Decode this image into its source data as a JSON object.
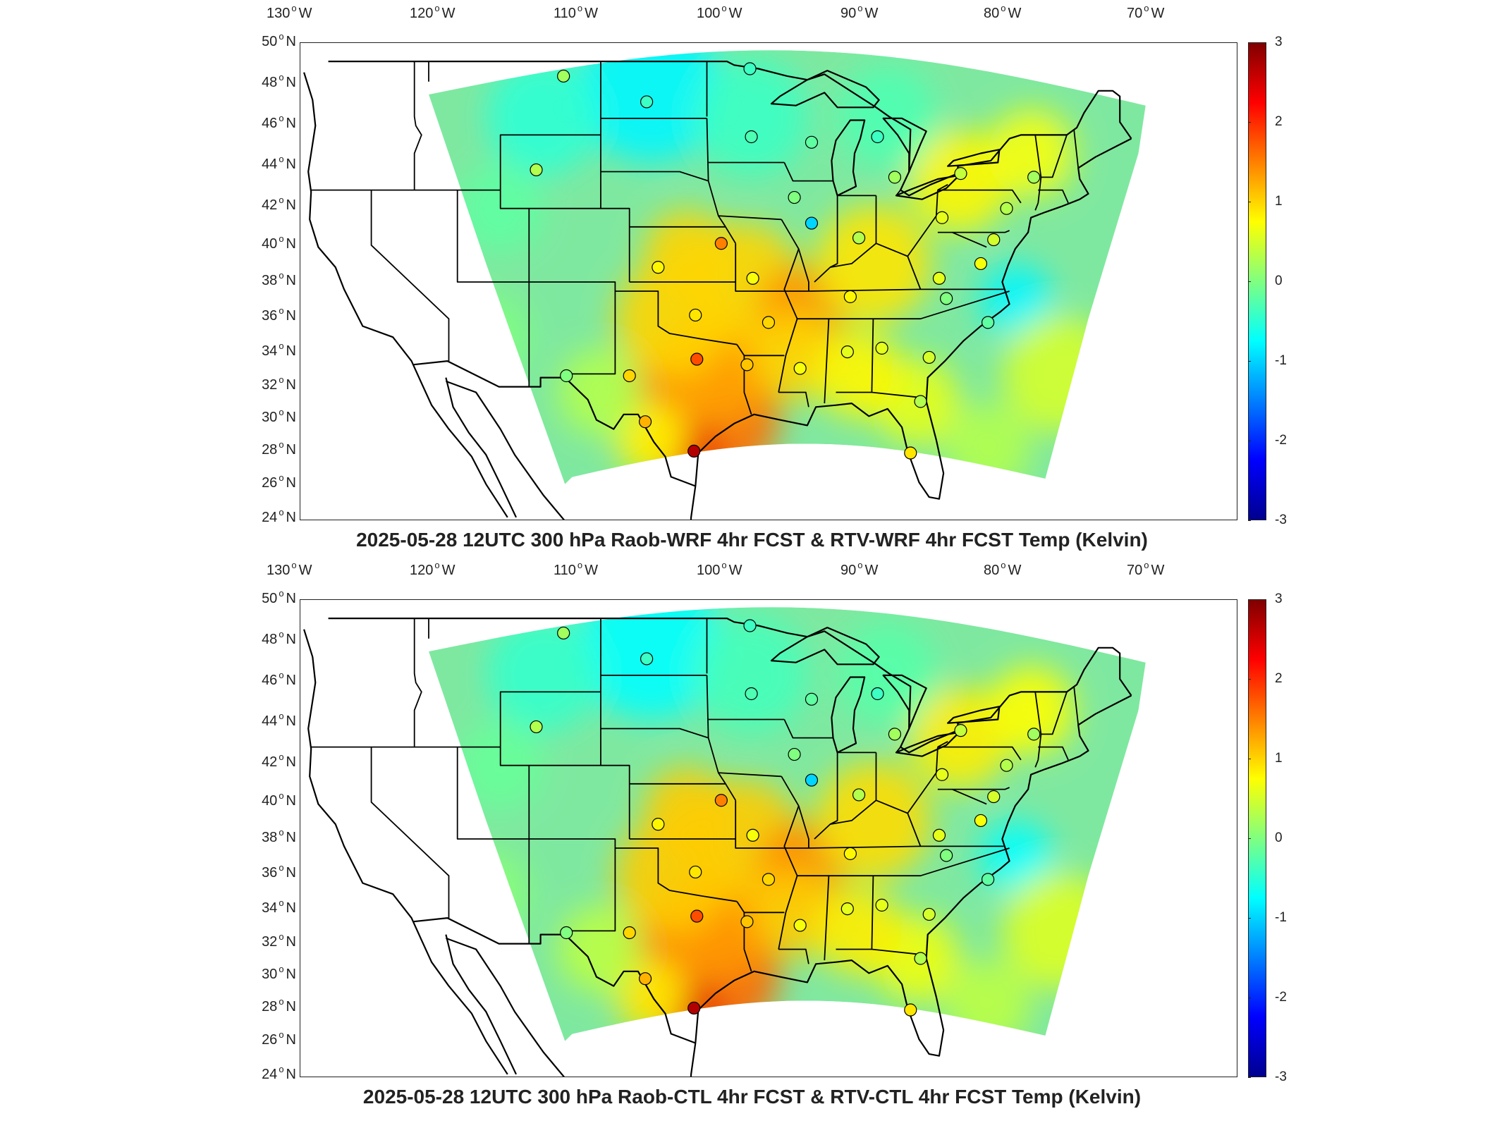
{
  "panels": [
    {
      "title": "2025-05-28 12UTC 300 hPa Raob-WRF 4hr FCST & RTV-WRF 4hr FCST Temp (Kelvin)"
    },
    {
      "title": "2025-05-28 12UTC 300 hPa Raob-CTL 4hr FCST & RTV-CTL 4hr FCST Temp (Kelvin)"
    }
  ],
  "lon_labels": [
    {
      "num": "130",
      "hemi": "W"
    },
    {
      "num": "120",
      "hemi": "W"
    },
    {
      "num": "110",
      "hemi": "W"
    },
    {
      "num": "100",
      "hemi": "W"
    },
    {
      "num": "90",
      "hemi": "W"
    },
    {
      "num": "80",
      "hemi": "W"
    },
    {
      "num": "70",
      "hemi": "W"
    }
  ],
  "lat_labels": [
    {
      "num": "50",
      "hemi": "N"
    },
    {
      "num": "48",
      "hemi": "N"
    },
    {
      "num": "46",
      "hemi": "N"
    },
    {
      "num": "44",
      "hemi": "N"
    },
    {
      "num": "42",
      "hemi": "N"
    },
    {
      "num": "40",
      "hemi": "N"
    },
    {
      "num": "38",
      "hemi": "N"
    },
    {
      "num": "36",
      "hemi": "N"
    },
    {
      "num": "34",
      "hemi": "N"
    },
    {
      "num": "32",
      "hemi": "N"
    },
    {
      "num": "30",
      "hemi": "N"
    },
    {
      "num": "28",
      "hemi": "N"
    },
    {
      "num": "26",
      "hemi": "N"
    },
    {
      "num": "24",
      "hemi": "N"
    }
  ],
  "colorbar": {
    "colormap": "jet",
    "range": [
      -3,
      3
    ],
    "ticks": [
      "3",
      "2",
      "1",
      "0",
      "-1",
      "-2",
      "-3"
    ]
  },
  "colors": {
    "low": "#00008f",
    "mid": "#80ff80",
    "high": "#800000",
    "field_base": "#7fe8a0",
    "warm_anomaly": "#ff7a1a",
    "cool_anomaly": "#22d6f0"
  },
  "stations": [
    {
      "lon": -106.6,
      "lat": 48.2,
      "value": 0.2
    },
    {
      "lon": -100.8,
      "lat": 46.8,
      "value": -0.4
    },
    {
      "lon": -93.6,
      "lat": 48.6,
      "value": -0.4
    },
    {
      "lon": -93.5,
      "lat": 44.9,
      "value": -0.3
    },
    {
      "lon": -108.5,
      "lat": 43.1,
      "value": 0.3
    },
    {
      "lon": -89.3,
      "lat": 44.6,
      "value": -0.2
    },
    {
      "lon": -84.7,
      "lat": 44.9,
      "value": -0.4
    },
    {
      "lon": -83.5,
      "lat": 42.7,
      "value": 0.2
    },
    {
      "lon": -78.9,
      "lat": 42.9,
      "value": 0.4
    },
    {
      "lon": -73.8,
      "lat": 42.7,
      "value": 0.2
    },
    {
      "lon": -90.5,
      "lat": 41.6,
      "value": 0.0
    },
    {
      "lon": -89.3,
      "lat": 40.2,
      "value": -1.0
    },
    {
      "lon": -80.2,
      "lat": 40.5,
      "value": 0.6
    },
    {
      "lon": -86.0,
      "lat": 39.4,
      "value": 0.3
    },
    {
      "lon": -95.6,
      "lat": 39.1,
      "value": 1.5
    },
    {
      "lon": -100.0,
      "lat": 37.8,
      "value": 0.8
    },
    {
      "lon": -93.4,
      "lat": 37.2,
      "value": 0.7
    },
    {
      "lon": -86.6,
      "lat": 36.2,
      "value": 0.8
    },
    {
      "lon": -80.4,
      "lat": 37.2,
      "value": 0.6
    },
    {
      "lon": -79.9,
      "lat": 36.1,
      "value": 0.0
    },
    {
      "lon": -97.4,
      "lat": 35.2,
      "value": 0.9
    },
    {
      "lon": -92.3,
      "lat": 34.8,
      "value": 1.0
    },
    {
      "lon": -77.0,
      "lat": 34.8,
      "value": -0.2
    },
    {
      "lon": -97.3,
      "lat": 32.8,
      "value": 1.8
    },
    {
      "lon": -93.8,
      "lat": 32.5,
      "value": 1.1
    },
    {
      "lon": -90.1,
      "lat": 32.3,
      "value": 0.7
    },
    {
      "lon": -86.8,
      "lat": 33.2,
      "value": 0.6
    },
    {
      "lon": -84.4,
      "lat": 33.4,
      "value": 0.6
    },
    {
      "lon": -81.1,
      "lat": 32.9,
      "value": 0.5
    },
    {
      "lon": -106.4,
      "lat": 31.9,
      "value": 0.0
    },
    {
      "lon": -102.0,
      "lat": 31.9,
      "value": 1.0
    },
    {
      "lon": -100.9,
      "lat": 29.4,
      "value": 1.2
    },
    {
      "lon": -81.7,
      "lat": 30.5,
      "value": 0.3
    },
    {
      "lon": -82.4,
      "lat": 27.7,
      "value": 0.9
    },
    {
      "lon": -97.5,
      "lat": 27.8,
      "value": 2.7
    },
    {
      "lon": -75.7,
      "lat": 41.0,
      "value": 0.3
    },
    {
      "lon": -77.5,
      "lat": 38.0,
      "value": 0.7
    },
    {
      "lon": -76.6,
      "lat": 39.3,
      "value": 0.5
    }
  ]
}
